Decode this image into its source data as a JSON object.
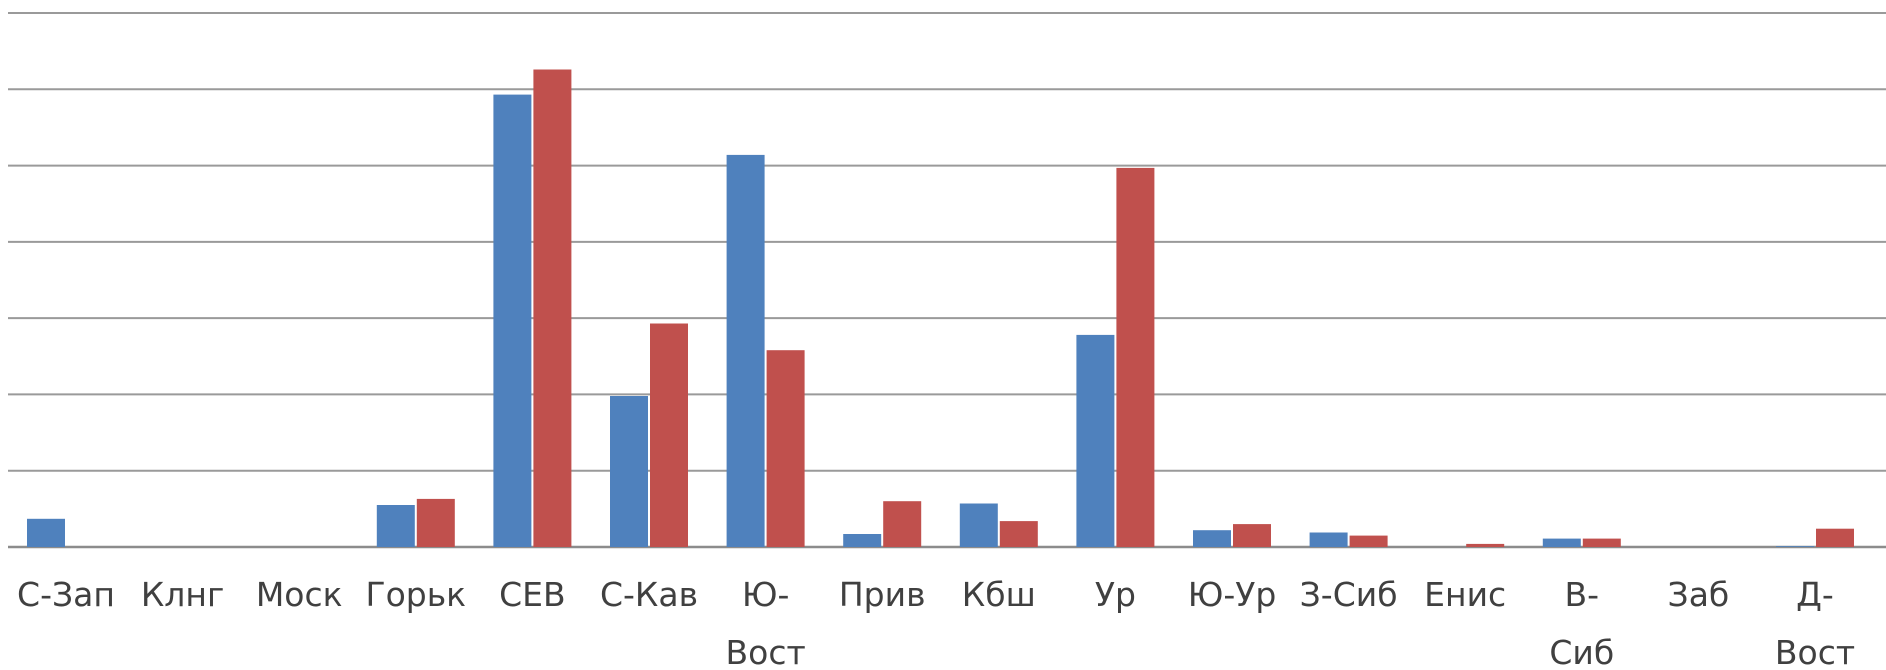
{
  "chart_data": {
    "type": "bar",
    "categories": [
      "С-Зап",
      "Клнг",
      "Моск",
      "Горьк",
      "СЕВ",
      "С-Кав",
      "Ю-Вост",
      "Прив",
      "Кбш",
      "Ур",
      "Ю-Ур",
      "З-Сиб",
      "Енис",
      "В-Сиб",
      "Заб",
      "Д-Вост"
    ],
    "category_lines": [
      [
        "С-Зап"
      ],
      [
        "Клнг"
      ],
      [
        "Моск"
      ],
      [
        "Горьк"
      ],
      [
        "СЕВ"
      ],
      [
        "С-Кав"
      ],
      [
        "Ю-",
        "Вост"
      ],
      [
        "Прив"
      ],
      [
        "Кбш"
      ],
      [
        "Ур"
      ],
      [
        "Ю-Ур"
      ],
      [
        "З-Сиб"
      ],
      [
        "Енис"
      ],
      [
        "В-",
        "Сиб"
      ],
      [
        "Заб"
      ],
      [
        "Д-",
        "Вост"
      ]
    ],
    "series": [
      {
        "color": "#4f81bd",
        "values": [
          0.37,
          0,
          0,
          0.55,
          5.93,
          1.98,
          5.14,
          0.17,
          0.57,
          2.78,
          0.22,
          0.19,
          0,
          0.11,
          0,
          0.01
        ]
      },
      {
        "color": "#c0504d",
        "values": [
          0,
          0,
          0,
          0.63,
          6.26,
          2.93,
          2.58,
          0.6,
          0.34,
          4.97,
          0.3,
          0.15,
          0.04,
          0.11,
          0,
          0.24
        ]
      }
    ],
    "ylim": [
      0,
      7
    ],
    "grid": true,
    "legend": "none",
    "xlabel": "",
    "ylabel": "",
    "title": ""
  }
}
